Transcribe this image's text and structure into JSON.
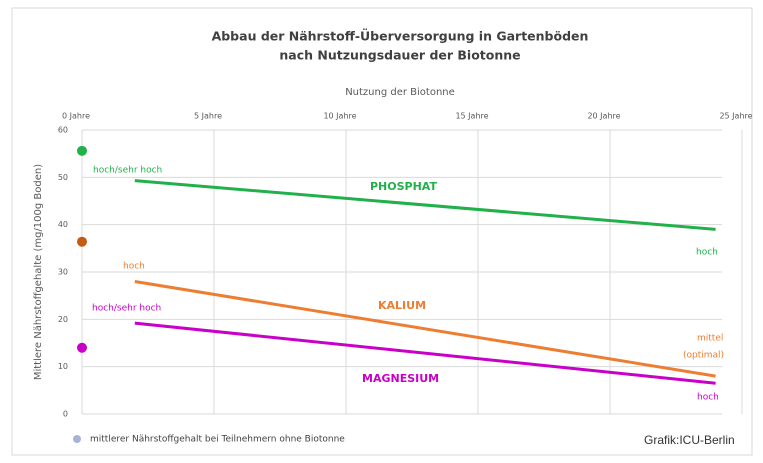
{
  "chart_data": {
    "type": "line",
    "title": [
      "Abbau der Nährstoff-Überversorgung in Gartenböden",
      "nach Nutzungsdauer der Biotonne"
    ],
    "x_label": "Nutzung der Biotonne",
    "y_label": "Mittlere Nährstoffgehalte (mg/100g Boden)",
    "xlim": [
      0,
      25
    ],
    "xticks": [
      {
        "value": 0,
        "label": "0 Jahre"
      },
      {
        "value": 5,
        "label": "5 Jahre"
      },
      {
        "value": 10,
        "label": "10 Jahre"
      },
      {
        "value": 15,
        "label": "15 Jahre"
      },
      {
        "value": 20,
        "label": "20 Jahre"
      },
      {
        "value": 25,
        "label": "25 Jahre"
      }
    ],
    "ylim": [
      0,
      60
    ],
    "yticks": [
      0,
      10,
      20,
      30,
      40,
      50,
      60
    ],
    "grid": true,
    "series": [
      {
        "name": "PHOSPHAT",
        "color": "#22b04b",
        "x": [
          2,
          24
        ],
        "values": [
          49.3,
          39
        ]
      },
      {
        "name": "KALIUM",
        "color": "#ed7d31",
        "x": [
          2,
          24
        ],
        "values": [
          28,
          8
        ]
      },
      {
        "name": "MAGNESIUM",
        "color": "#c800c8",
        "x": [
          2,
          24
        ],
        "values": [
          19.2,
          6.5
        ]
      }
    ],
    "reference": {
      "name": "mittlerer Nährstoffgehalt bei Teilnehmern ohne Biotonne",
      "color": "#a6b4d4",
      "x": [
        0,
        0,
        0
      ],
      "values": [
        55.6,
        36.4,
        14
      ],
      "colors": [
        "#22b04b",
        "#c55a11",
        "#c800c8"
      ]
    },
    "annotations": [
      {
        "text": "hoch/sehr hoch",
        "color": "#22b04b"
      },
      {
        "text": "hoch",
        "color": "#22b04b"
      },
      {
        "text": "hoch",
        "color": "#ed7d31"
      },
      {
        "text": "mittel",
        "color": "#ed7d31"
      },
      {
        "text": "(optimal)",
        "color": "#ed7d31"
      },
      {
        "text": "hoch/sehr hoch",
        "color": "#c800c8"
      },
      {
        "text": "hoch",
        "color": "#c800c8"
      }
    ],
    "source": "Grafik:ICU-Berlin"
  }
}
